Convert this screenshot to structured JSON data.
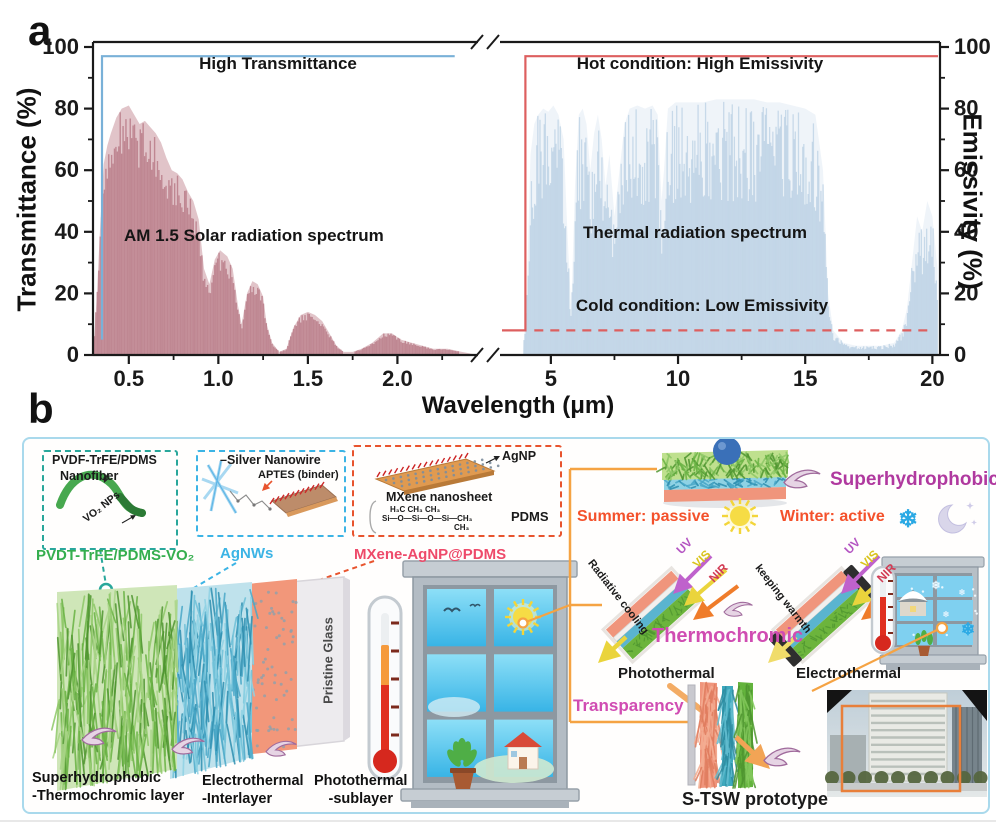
{
  "panel_labels": {
    "a": "a",
    "b": "b"
  },
  "chart_data": {
    "type": "area",
    "title": "",
    "x_label": "Wavelength (μm)",
    "y_left_label": "Transmittance (%)",
    "y_right_label": "Emissivity (%)",
    "y_ticks": [
      0,
      20,
      40,
      60,
      80,
      100
    ],
    "y_minor_ticks": [
      10,
      30,
      50,
      70,
      90
    ],
    "y_range": [
      0,
      100
    ],
    "axis_break": true,
    "x_axis_left": {
      "range": [
        0.3,
        2.45
      ],
      "ticks": [
        0.5,
        1.0,
        1.5,
        2.0
      ],
      "tick_labels": [
        "0.5",
        "1.0",
        "1.5",
        "2.0"
      ],
      "minor": [
        0.75,
        1.25,
        1.75,
        2.25
      ]
    },
    "x_axis_right": {
      "range": [
        3.0,
        20.3
      ],
      "ticks": [
        5,
        10,
        15,
        20
      ],
      "tick_labels": [
        "5",
        "10",
        "15",
        "20"
      ],
      "minor": [
        7.5,
        12.5,
        17.5
      ]
    },
    "annotations": {
      "high_transmittance": "High Transmittance",
      "hot": "Hot condition: High Emissivity",
      "cold": "Cold condition: Low Emissivity",
      "solar": "AM 1.5 Solar radiation spectrum",
      "thermal": "Thermal radiation spectrum"
    },
    "series": [
      {
        "name": "Transmittance",
        "panel": "left",
        "type": "line",
        "color": "#79b1d8",
        "points": [
          [
            0.35,
            5
          ],
          [
            0.35,
            97
          ],
          [
            2.32,
            97
          ]
        ]
      },
      {
        "name": "Emissivity hot condition",
        "panel": "right",
        "type": "line",
        "color": "#dd5f5f",
        "points": [
          [
            3.08,
            8
          ],
          [
            4.0,
            8
          ],
          [
            4.0,
            97
          ],
          [
            20.22,
            97
          ]
        ]
      },
      {
        "name": "Emissivity cold condition",
        "panel": "right",
        "type": "line",
        "dashed": true,
        "color": "#dd5f5f",
        "points": [
          [
            4.35,
            8
          ],
          [
            20.0,
            8
          ]
        ]
      },
      {
        "name": "AM 1.5 solar radiation spectrum",
        "panel": "left",
        "type": "area",
        "fill": "#c9939d",
        "stripe": "#ba7d89",
        "envelope": [
          [
            0.3,
            0
          ],
          [
            0.32,
            18
          ],
          [
            0.34,
            42
          ],
          [
            0.36,
            62
          ],
          [
            0.38,
            68
          ],
          [
            0.4,
            72
          ],
          [
            0.43,
            77
          ],
          [
            0.46,
            80
          ],
          [
            0.5,
            81
          ],
          [
            0.53,
            78
          ],
          [
            0.56,
            75
          ],
          [
            0.59,
            76
          ],
          [
            0.62,
            74
          ],
          [
            0.65,
            72
          ],
          [
            0.68,
            69
          ],
          [
            0.71,
            64
          ],
          [
            0.74,
            60
          ],
          [
            0.77,
            59
          ],
          [
            0.8,
            57
          ],
          [
            0.83,
            53
          ],
          [
            0.86,
            50
          ],
          [
            0.89,
            44
          ],
          [
            0.92,
            28
          ],
          [
            0.95,
            23
          ],
          [
            0.98,
            31
          ],
          [
            1.01,
            34
          ],
          [
            1.05,
            32
          ],
          [
            1.08,
            28
          ],
          [
            1.11,
            16
          ],
          [
            1.13,
            10
          ],
          [
            1.16,
            20
          ],
          [
            1.19,
            24
          ],
          [
            1.22,
            23
          ],
          [
            1.25,
            19
          ],
          [
            1.27,
            10
          ],
          [
            1.3,
            4
          ],
          [
            1.34,
            1
          ],
          [
            1.38,
            2
          ],
          [
            1.42,
            9
          ],
          [
            1.46,
            13
          ],
          [
            1.5,
            14
          ],
          [
            1.54,
            13
          ],
          [
            1.58,
            11
          ],
          [
            1.62,
            7
          ],
          [
            1.66,
            3
          ],
          [
            1.7,
            1
          ],
          [
            1.75,
            1
          ],
          [
            1.8,
            2
          ],
          [
            1.86,
            4
          ],
          [
            1.92,
            7
          ],
          [
            1.97,
            7
          ],
          [
            2.02,
            5
          ],
          [
            2.08,
            4
          ],
          [
            2.14,
            3
          ],
          [
            2.2,
            2
          ],
          [
            2.28,
            2
          ],
          [
            2.36,
            1
          ],
          [
            2.45,
            0
          ]
        ]
      },
      {
        "name": "Thermal radiation spectrum",
        "panel": "right",
        "type": "area",
        "fill": "#dbe6f2",
        "stripe": "#a8c4dc",
        "envelope": [
          [
            3.9,
            0
          ],
          [
            4.05,
            20
          ],
          [
            4.2,
            65
          ],
          [
            4.35,
            75
          ],
          [
            4.5,
            78
          ],
          [
            4.7,
            80
          ],
          [
            4.9,
            79
          ],
          [
            5.1,
            81
          ],
          [
            5.3,
            78
          ],
          [
            5.5,
            70
          ],
          [
            5.65,
            40
          ],
          [
            5.8,
            15
          ],
          [
            5.95,
            55
          ],
          [
            6.1,
            78
          ],
          [
            6.25,
            80
          ],
          [
            6.4,
            75
          ],
          [
            6.55,
            60
          ],
          [
            6.7,
            72
          ],
          [
            6.85,
            78
          ],
          [
            7.0,
            70
          ],
          [
            7.15,
            55
          ],
          [
            7.3,
            65
          ],
          [
            7.5,
            45
          ],
          [
            7.7,
            60
          ],
          [
            7.9,
            75
          ],
          [
            8.1,
            80
          ],
          [
            8.4,
            81
          ],
          [
            8.7,
            80
          ],
          [
            9.0,
            81
          ],
          [
            9.2,
            78
          ],
          [
            9.35,
            50
          ],
          [
            9.45,
            60
          ],
          [
            9.6,
            80
          ],
          [
            9.9,
            82
          ],
          [
            10.5,
            82
          ],
          [
            11.0,
            82
          ],
          [
            11.5,
            83
          ],
          [
            12.0,
            83
          ],
          [
            12.5,
            83
          ],
          [
            13.0,
            83
          ],
          [
            13.5,
            82
          ],
          [
            14.0,
            82
          ],
          [
            14.5,
            81
          ],
          [
            15.0,
            80
          ],
          [
            15.4,
            78
          ],
          [
            15.7,
            60
          ],
          [
            15.9,
            20
          ],
          [
            16.1,
            8
          ],
          [
            16.5,
            4
          ],
          [
            17.0,
            3
          ],
          [
            17.5,
            3
          ],
          [
            18.0,
            3
          ],
          [
            18.5,
            4
          ],
          [
            18.8,
            8
          ],
          [
            19.0,
            15
          ],
          [
            19.2,
            30
          ],
          [
            19.4,
            45
          ],
          [
            19.6,
            40
          ],
          [
            19.8,
            50
          ],
          [
            20.0,
            45
          ],
          [
            20.2,
            28
          ]
        ]
      }
    ]
  },
  "panel_b": {
    "insets": [
      {
        "title1": "PVDF-TrFE/PDMS",
        "title2": "Nanofiber",
        "tag": "VO₂ NPs",
        "caption": "PVDT-TrFE/PDMS-VO₂",
        "border_color": "#29a79b",
        "caption_color": "#35ae4e"
      },
      {
        "title1": "–Silver Nanowire",
        "tag": "APTES (binder)",
        "caption": "AgNWs",
        "border_color": "#3cb4e5",
        "caption_color": "#3cb4e5"
      },
      {
        "title1": "AgNP",
        "title2": "MXene nanosheet",
        "tag": "PDMS",
        "formula_rows": [
          "H₃C      CH₃      CH₃",
          "Si—O—Si—O—Si—CH₃",
          "CH₃"
        ],
        "caption": "MXene-AgNP@PDMS",
        "border_color": "#e8542e",
        "caption_color": "#ee4a6a"
      }
    ],
    "stack_labels": [
      {
        "line1": "Superhydrophobic",
        "line2": "-Thermochromic layer"
      },
      {
        "line1": "Electrothermal",
        "line2": "-Interlayer"
      },
      {
        "line1": "Photothermal",
        "line2": "-sublayer"
      }
    ],
    "pristine_glass": "Pristine Glass",
    "right": {
      "superhydrophobic": "Superhydrophobic",
      "summer": "Summer: passive",
      "winter": "Winter: active",
      "radiative_cooling": "Radiative cooling",
      "keeping_warmth": "keeping warmth",
      "uv": "UV",
      "vis": "VIS",
      "nir": "NIR",
      "thermochromic": "Thermochromic",
      "photothermal": "Photothermal",
      "electrothermal": "Electrothermal",
      "transparency": "Transparency",
      "prototype": "S-TSW prototype"
    },
    "colors": {
      "accent_orange": "#f5a343",
      "season_orange": "#f4512b",
      "magenta": "#d04cb2",
      "purple": "#b0399f",
      "uv": "#b455c2",
      "vis": "#d9c41c",
      "nir": "#d23b54"
    }
  }
}
